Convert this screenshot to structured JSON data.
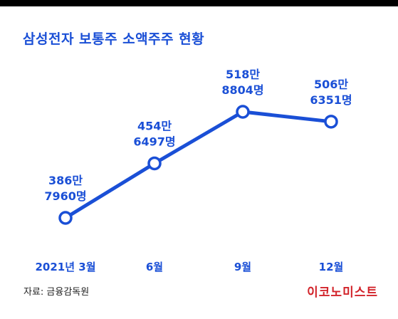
{
  "header": {
    "title": "삼성전자 보통주 소액주주 현황"
  },
  "footer": {
    "source": "자료: 금융감독원",
    "brand": "이코노미스트"
  },
  "colors": {
    "accent": "#1a4fd6",
    "brand": "#d2232a",
    "top_bar": "#000000"
  },
  "chart_data": {
    "type": "line",
    "title": "삼성전자 보통주 소액주주 현황",
    "xlabel": "",
    "ylabel": "",
    "categories": [
      "2021년 3월",
      "6월",
      "9월",
      "12월"
    ],
    "series": [
      {
        "values": [
          3867960,
          4546497,
          5188804,
          5066351
        ],
        "data_labels": [
          [
            "386만",
            "7960명"
          ],
          [
            "454만",
            "6497명"
          ],
          [
            "518만",
            "8804명"
          ],
          [
            "506만",
            "6351명"
          ]
        ]
      }
    ],
    "grid": false,
    "legend": "none"
  }
}
